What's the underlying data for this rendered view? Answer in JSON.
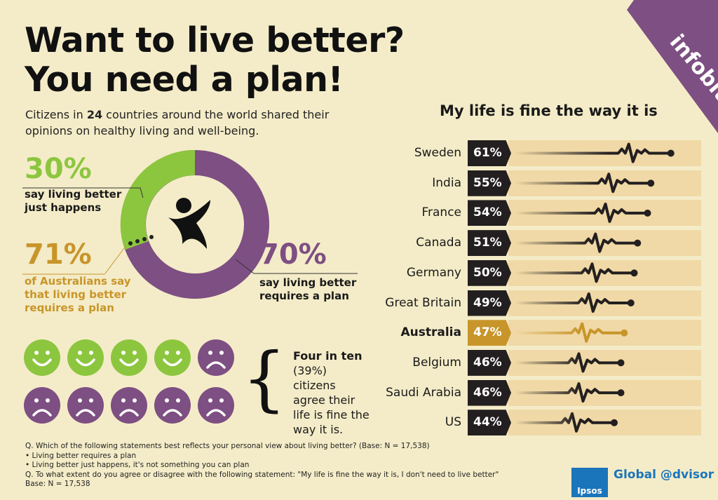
{
  "title": {
    "line1": "Want to live better?",
    "line2": "You need a plan!"
  },
  "intro": {
    "pre": "Citizens in ",
    "count": "24",
    "post": " countries around the world shared their opinions on healthy living and well-being."
  },
  "stat_happens": {
    "pct": "30%",
    "text": "say living better just happens"
  },
  "stat_plan": {
    "pct": "70%",
    "text": "say living better requires a plan"
  },
  "stat_aus": {
    "pct": "71%",
    "text": "of Australians say that living better requires a plan"
  },
  "four_in_ten": {
    "bold": "Four in ten",
    "pct": "(39%)",
    "text": "citizens agree their life is fine the way it is."
  },
  "faces": {
    "happy": 4,
    "total": 10
  },
  "corner": {
    "text": "infobite"
  },
  "colors": {
    "green": "#8cc63f",
    "purple": "#7d4f82",
    "gold": "#c8952a",
    "dark": "#231f20",
    "bar_bg": "#f0d9a6"
  },
  "chart_data": {
    "type": "bar",
    "title": "My life is fine the way it is",
    "categories": [
      "Sweden",
      "India",
      "France",
      "Canada",
      "Germany",
      "Great Britain",
      "Australia",
      "Belgium",
      "Saudi Arabia",
      "US"
    ],
    "values": [
      61,
      55,
      54,
      51,
      50,
      49,
      47,
      46,
      46,
      44
    ],
    "labels": [
      "61%",
      "55%",
      "54%",
      "51%",
      "50%",
      "49%",
      "47%",
      "46%",
      "46%",
      "44%"
    ],
    "highlight": "Australia"
  },
  "notes": [
    "Q. Which of the following statements best reflects your personal view about living better? (Base: N = 17,538)",
    "•  Living better requires a plan",
    "•  Living better just happens, it's not something you can plan",
    "Q. To what extent do you agree or disagree with the following statement: \"My life is fine the way it is, I don't need to live better\"",
    "Base: N = 17,538"
  ],
  "brand": {
    "logo": "Ipsos",
    "tagline": "Global @dvisor"
  }
}
